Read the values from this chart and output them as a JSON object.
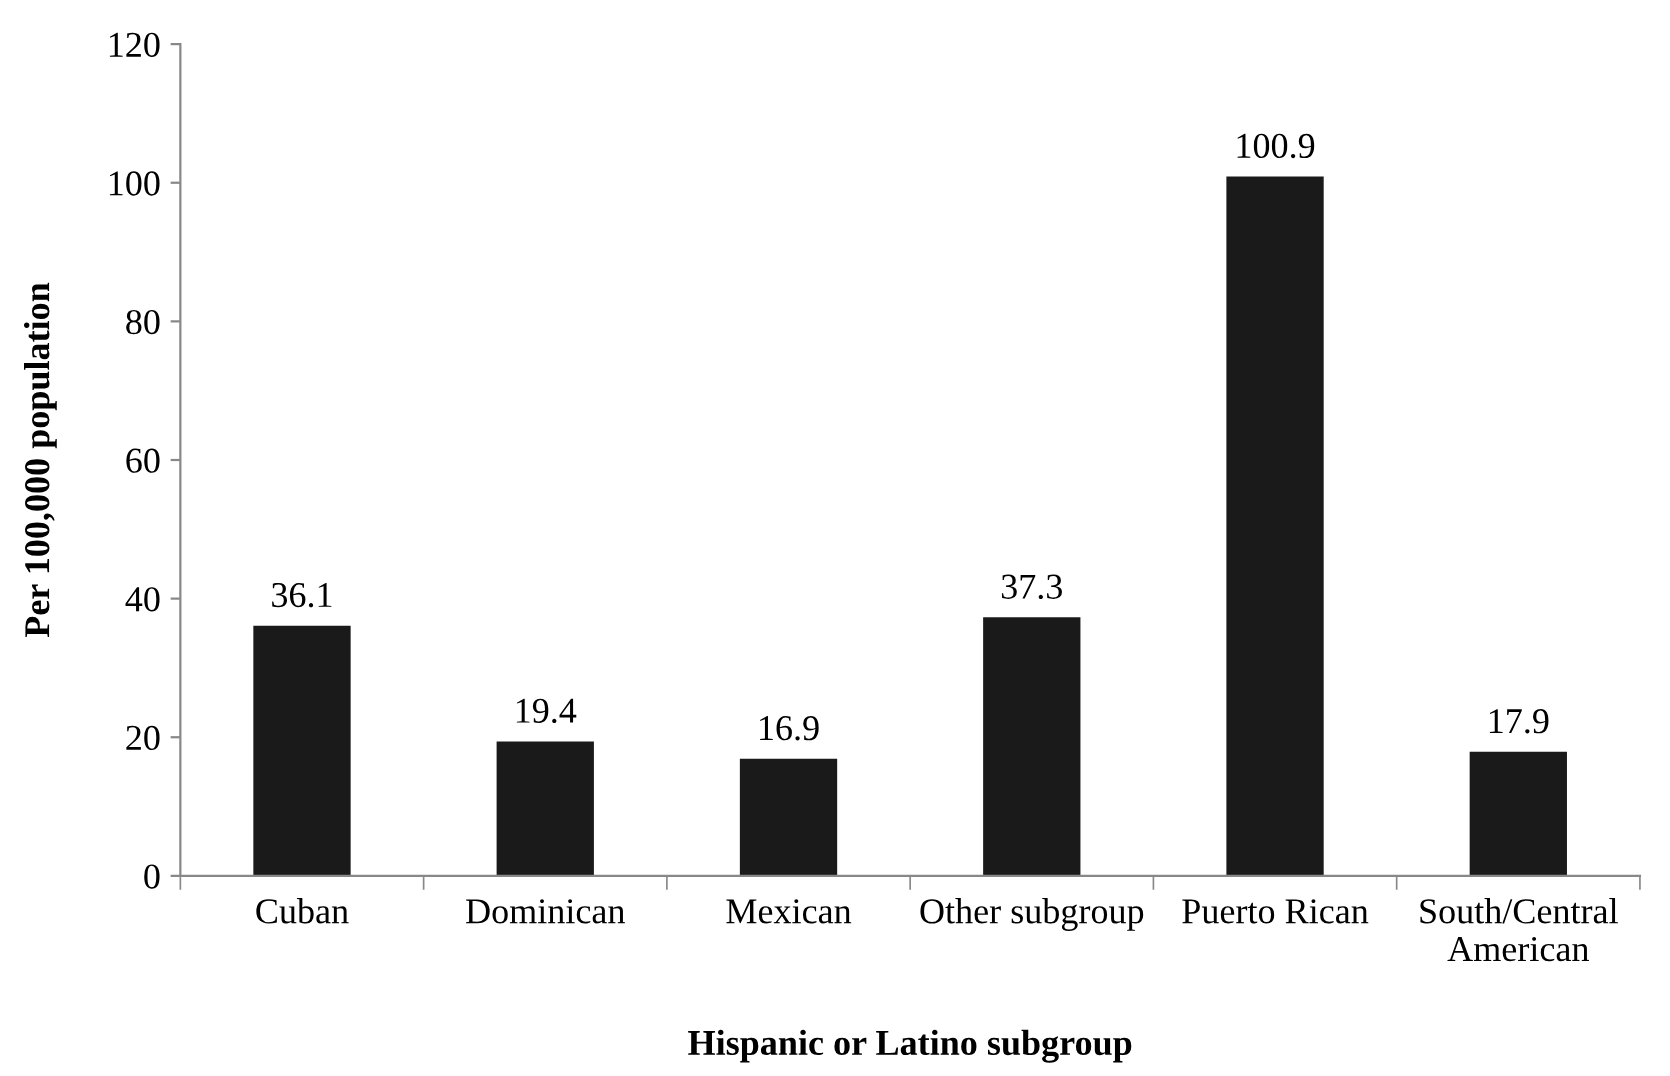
{
  "chart_data": {
    "type": "bar",
    "xlabel": "Hispanic or Latino subgroup",
    "ylabel": "Per 100,000 population",
    "categories": [
      "Cuban",
      "Dominican",
      "Mexican",
      "Other subgroup",
      "Puerto Rican",
      "South/Central\nAmerican"
    ],
    "values": [
      36.1,
      19.4,
      16.9,
      37.3,
      100.9,
      17.9
    ],
    "color": "#1a1a1a",
    "ylim": [
      0,
      120
    ],
    "yticks": [
      0,
      20,
      40,
      60,
      80,
      100,
      120
    ],
    "grid": false,
    "data_labels": true
  }
}
